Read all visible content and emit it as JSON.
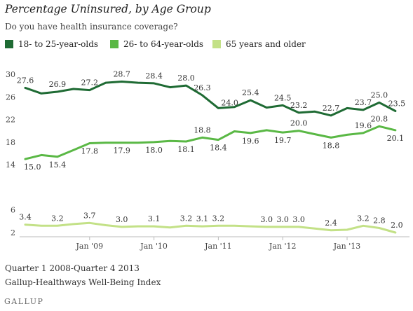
{
  "header": {
    "title": "Percentage Uninsured, by Age Group",
    "subtitle": "Do you have health insurance coverage?"
  },
  "footer": {
    "range": "Quarter 1 2008-Quarter 4 2013",
    "source": "Gallup-Healthways Well-Being Index",
    "logo": "GALLUP"
  },
  "chart_data": {
    "type": "line",
    "x": [
      0,
      1,
      2,
      3,
      4,
      5,
      6,
      7,
      8,
      9,
      10,
      11,
      12,
      13,
      14,
      15,
      16,
      17,
      18,
      19,
      20,
      21,
      22,
      23
    ],
    "x_ticks": [
      {
        "at": 4,
        "label": "Jan '09"
      },
      {
        "at": 8,
        "label": "Jan '10"
      },
      {
        "at": 12,
        "label": "Jan '11"
      },
      {
        "at": 16,
        "label": "Jan '12"
      },
      {
        "at": 20,
        "label": "Jan '13"
      }
    ],
    "y_ticks": [
      2,
      6,
      14,
      18,
      22,
      26,
      30
    ],
    "ylim": [
      2,
      30
    ],
    "grid": false,
    "legend": "top-left",
    "series": [
      {
        "name": "18- to 25-year-olds",
        "color": "#1f6b34",
        "values": [
          27.6,
          26.6,
          26.9,
          27.4,
          27.2,
          28.5,
          28.7,
          28.5,
          28.4,
          27.7,
          28.0,
          26.3,
          24.0,
          24.2,
          25.4,
          24.1,
          24.5,
          23.2,
          23.4,
          22.7,
          24.0,
          23.7,
          25.0,
          23.5
        ],
        "labeled": [
          0,
          2,
          4,
          6,
          8,
          10,
          11,
          12,
          14,
          16,
          17,
          19,
          21,
          22,
          23
        ],
        "label_pos": {
          "0": "above",
          "2": "above",
          "4": "above",
          "6": "above",
          "8": "above",
          "10": "above",
          "11": "above",
          "12": "right",
          "14": "above",
          "16": "above",
          "17": "above",
          "19": "above",
          "21": "above",
          "22": "above",
          "23": "aboveright"
        }
      },
      {
        "name": "26- to 64-year-olds",
        "color": "#5ab845",
        "values": [
          15.0,
          15.7,
          15.4,
          16.6,
          17.8,
          17.9,
          17.9,
          17.9,
          18.0,
          18.2,
          18.1,
          18.8,
          18.4,
          19.9,
          19.6,
          20.1,
          19.7,
          20.0,
          19.4,
          18.8,
          19.3,
          19.6,
          20.8,
          20.1
        ],
        "labeled": [
          0,
          2,
          4,
          6,
          8,
          10,
          11,
          12,
          14,
          16,
          17,
          19,
          21,
          22,
          23
        ],
        "label_pos": {
          "0": "belowleft",
          "2": "below",
          "4": "below",
          "6": "below",
          "8": "below",
          "10": "below",
          "11": "above",
          "12": "below",
          "14": "below",
          "16": "below",
          "17": "above",
          "19": "below",
          "21": "above",
          "22": "above",
          "23": "below"
        }
      },
      {
        "name": "65 years and older",
        "color": "#c3e187",
        "values": [
          3.4,
          3.2,
          3.2,
          3.5,
          3.7,
          3.3,
          3.0,
          3.1,
          3.1,
          2.9,
          3.2,
          3.1,
          3.2,
          3.2,
          3.1,
          3.0,
          3.0,
          3.0,
          2.7,
          2.4,
          2.5,
          3.2,
          2.8,
          2.0
        ],
        "labeled": [
          0,
          2,
          4,
          6,
          8,
          10,
          11,
          12,
          15,
          16,
          17,
          19,
          21,
          22,
          23
        ],
        "label_pos": {
          "0": "above",
          "2": "above",
          "4": "above",
          "6": "above",
          "8": "above",
          "10": "above",
          "11": "above",
          "12": "above",
          "15": "above",
          "16": "above",
          "17": "above",
          "19": "above",
          "21": "above",
          "22": "above",
          "23": "aboveright"
        }
      }
    ]
  }
}
